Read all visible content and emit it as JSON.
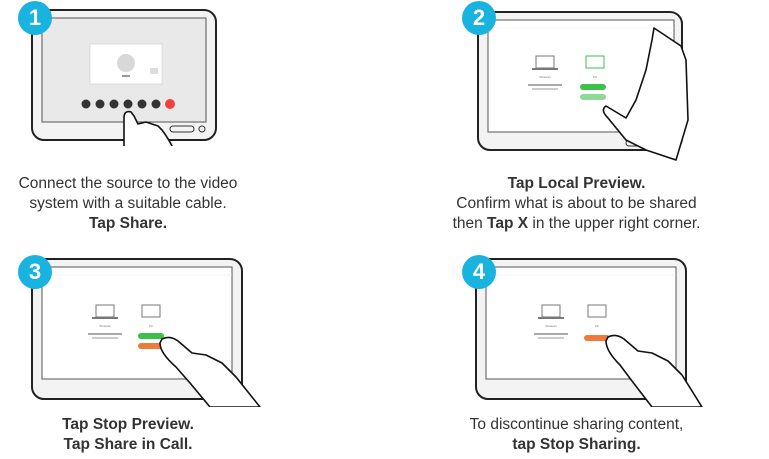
{
  "steps": [
    {
      "number": "1",
      "caption_line1": "Connect the source to the video",
      "caption_line2": "system with a suitable cable.",
      "caption_bold": "Tap Share."
    },
    {
      "number": "2",
      "caption_bold_1": "Tap Local Preview.",
      "caption_line2": "Confirm what is about to be shared",
      "caption_line3_pre": "then ",
      "caption_line3_bold": "Tap X",
      "caption_line3_post": " in the upper right corner."
    },
    {
      "number": "3",
      "caption_bold_1": "Tap Stop Preview.",
      "caption_bold_2": "Tap Share in Call."
    },
    {
      "number": "4",
      "caption_line1": "To discontinue sharing content,",
      "caption_bold": "tap Stop Sharing."
    }
  ],
  "screen_labels": {
    "wireless": "Wireless",
    "pc": "PC"
  },
  "colors": {
    "badge": "#19b3df",
    "green_button": "#3cc04a",
    "orange_button": "#f07a3a",
    "red_button": "#f04040"
  }
}
